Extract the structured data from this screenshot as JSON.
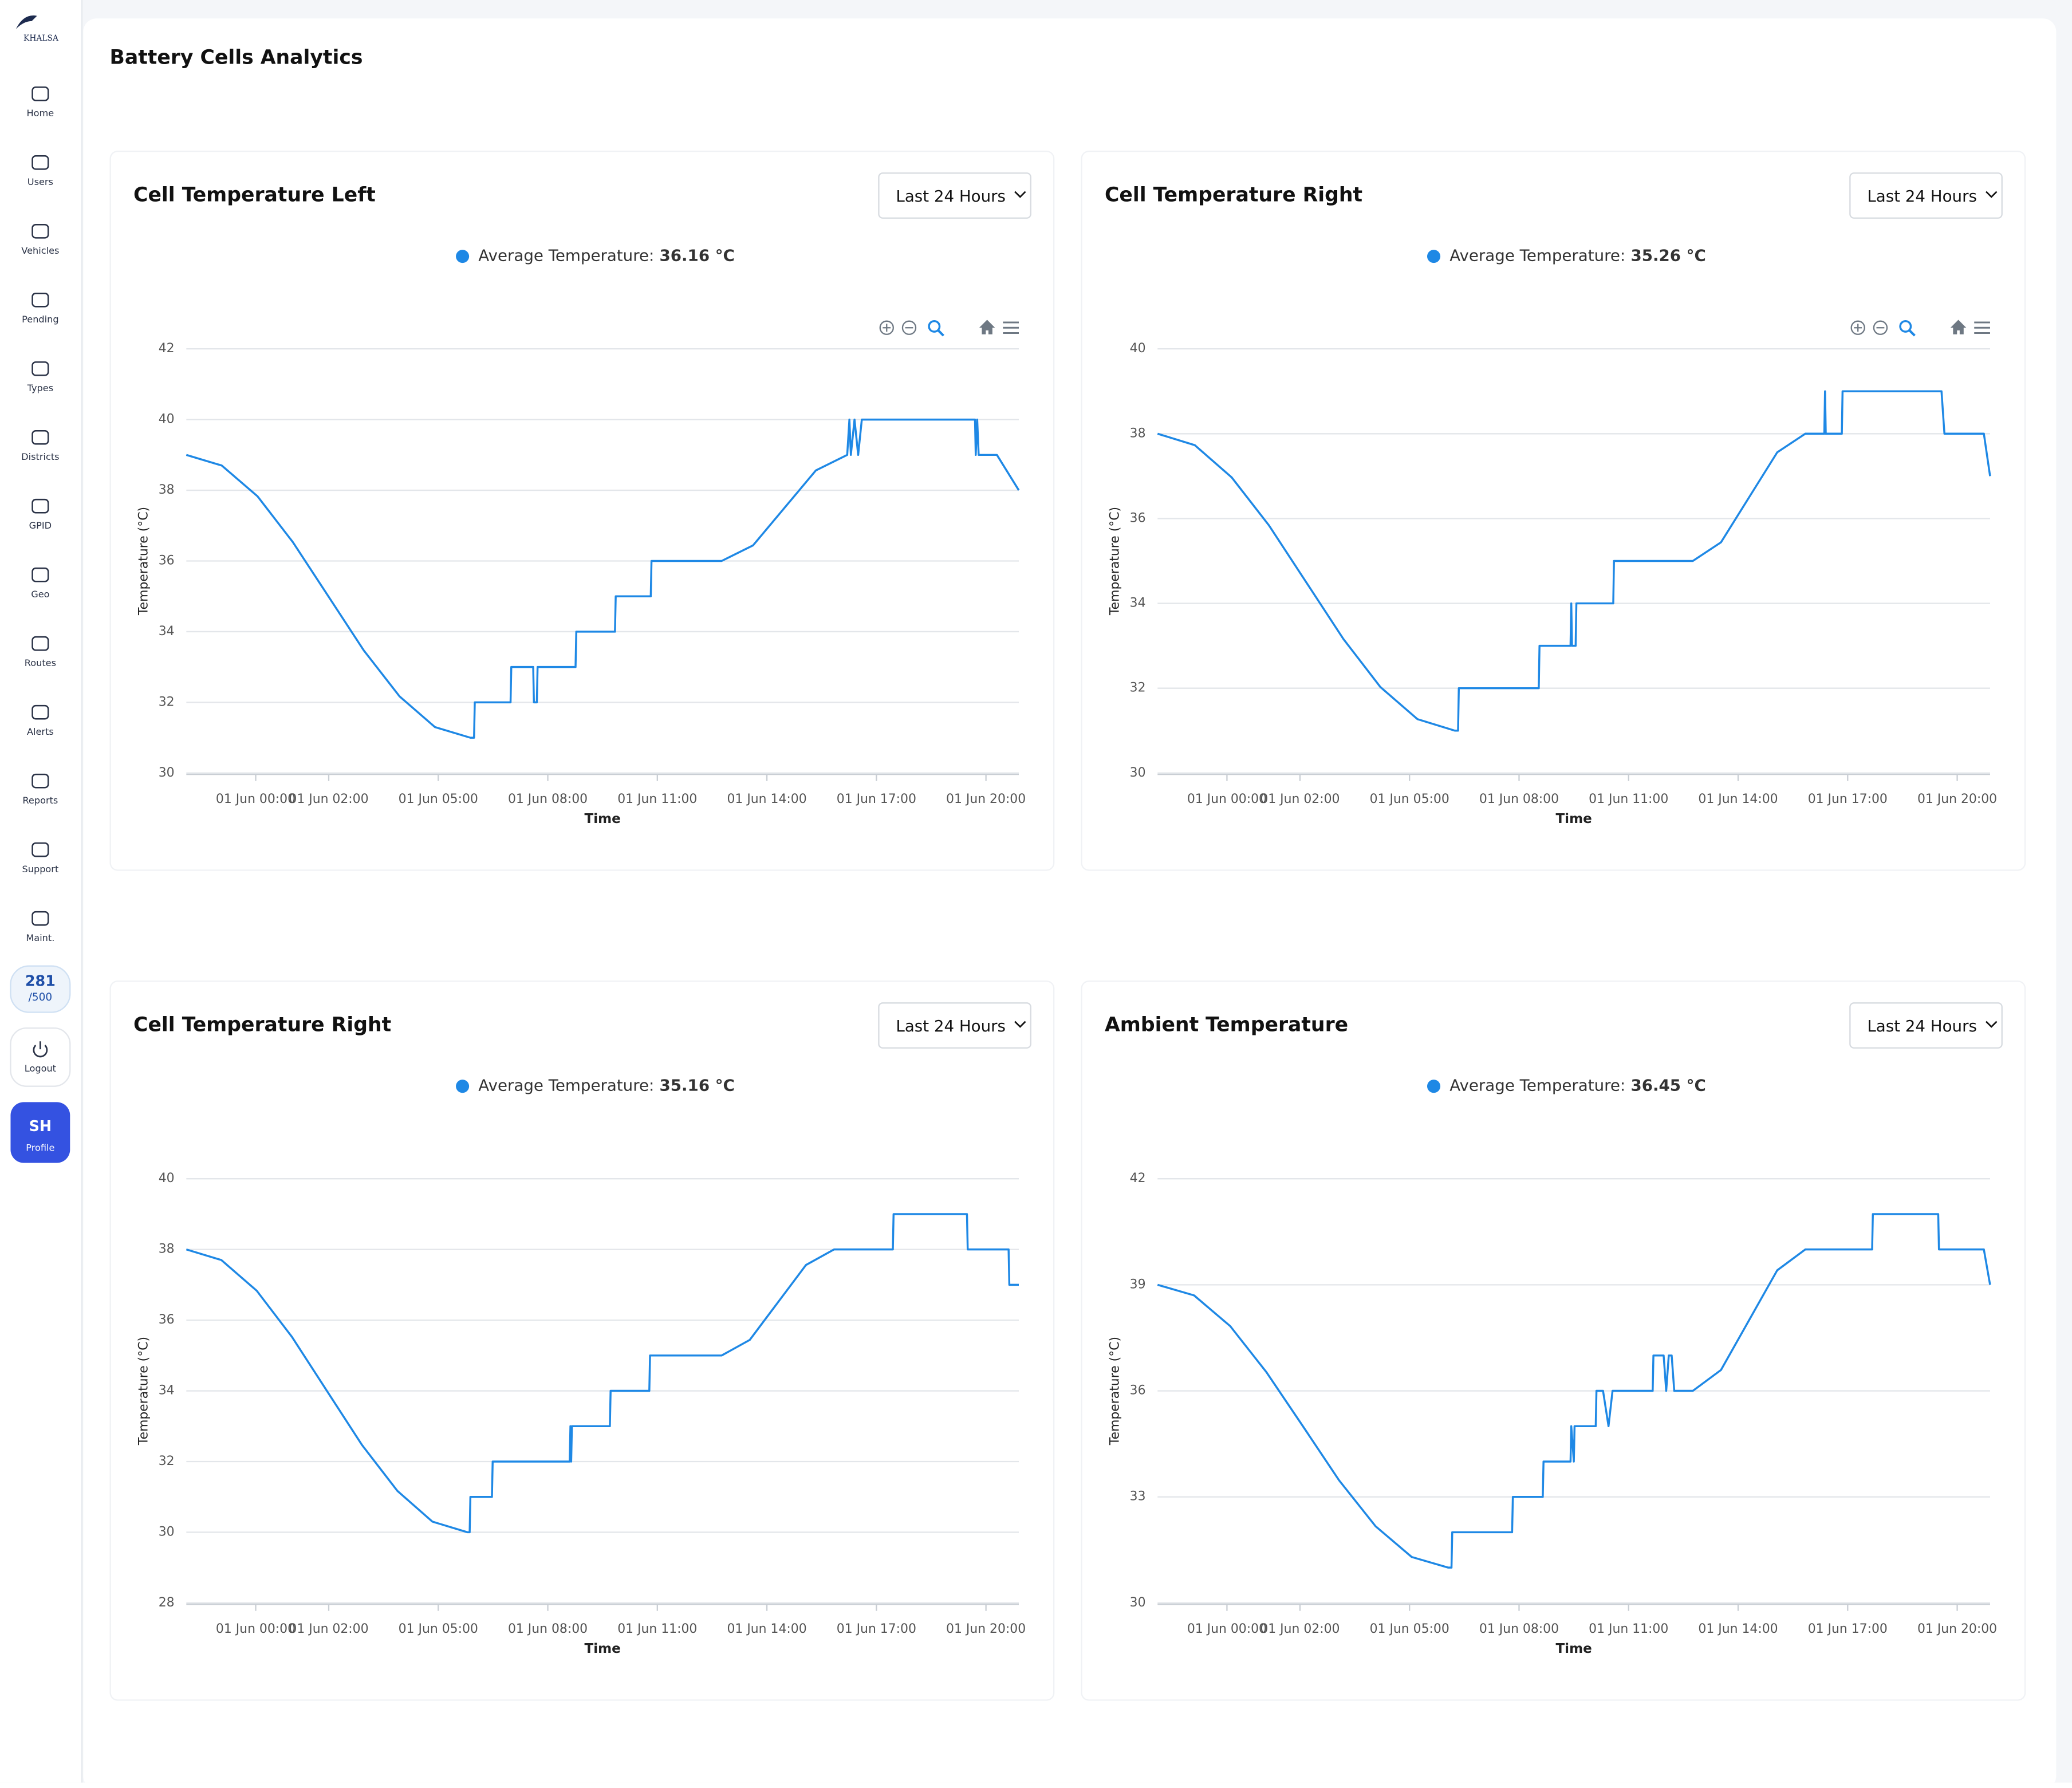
{
  "sidebar": {
    "logo": "KHALSA",
    "nav": [
      "Home",
      "Users",
      "Vehicles",
      "Pending",
      "Types",
      "Districts",
      "GPID",
      "Geo",
      "Routes",
      "Alerts",
      "Reports",
      "Support",
      "Maint."
    ],
    "quota": {
      "used": "281",
      "total": "/500"
    },
    "logout": "Logout",
    "profile": {
      "initials": "SH",
      "label": "Profile"
    }
  },
  "header": {
    "title": "Battery Cells Analytics"
  },
  "chart_data": [
    {
      "type": "line",
      "title": "Cell Temperature Left",
      "range_select": "Last 24 Hours",
      "grid": true,
      "y_label": "Temperature (°C)",
      "x_label": "Time",
      "legend_value": "36.16 °C",
      "xlim": [
        -1.9,
        20.9
      ],
      "xticks": [
        {
          "value": 0,
          "label": "01 Jun 00:00"
        },
        {
          "value": 2,
          "label": "01 Jun 02:00"
        },
        {
          "value": 5,
          "label": "01 Jun 05:00"
        },
        {
          "value": 8,
          "label": "01 Jun 08:00"
        },
        {
          "value": 11,
          "label": "01 Jun 11:00"
        },
        {
          "value": 14,
          "label": "01 Jun 14:00"
        },
        {
          "value": 17,
          "label": "01 Jun 17:00"
        },
        {
          "value": 20,
          "label": "01 Jun 20:00"
        }
      ],
      "ylim": [
        30,
        42
      ],
      "yticks": [
        30,
        32,
        34,
        36,
        38,
        40,
        42
      ],
      "x": [
        -1.9,
        -0.93,
        0.05,
        1.02,
        1.99,
        2.96,
        3.94,
        4.91,
        5.88,
        5.98,
        6.0,
        6.98,
        7.0,
        7.6,
        7.62,
        7.7,
        7.72,
        8.76,
        8.78,
        9.84,
        9.86,
        10.82,
        10.84,
        12.76,
        13.62,
        14.48,
        15.34,
        16.2,
        16.26,
        16.3,
        16.4,
        16.5,
        16.6,
        19.7,
        19.72,
        19.76,
        19.8,
        20.3,
        20.9
      ],
      "series": [
        {
          "name": "Average Temperature:",
          "color": "#1e88e5",
          "values": [
            39,
            38.7,
            37.83,
            36.53,
            35,
            33.47,
            32.17,
            31.3,
            31,
            31,
            32,
            32,
            33,
            33,
            32,
            32,
            33,
            33,
            34,
            34,
            35,
            35,
            36,
            36,
            36.44,
            37.5,
            38.56,
            39,
            40,
            39,
            40,
            39,
            40,
            40,
            39,
            40,
            39,
            39,
            38
          ]
        }
      ]
    },
    {
      "type": "line",
      "title": "Cell Temperature Right",
      "range_select": "Last 24 Hours",
      "grid": true,
      "y_label": "Temperature (°C)",
      "x_label": "Time",
      "legend_value": "35.26 °C",
      "xlim": [
        -1.9,
        20.9
      ],
      "xticks": [
        {
          "value": 0,
          "label": "01 Jun 00:00"
        },
        {
          "value": 2,
          "label": "01 Jun 02:00"
        },
        {
          "value": 5,
          "label": "01 Jun 05:00"
        },
        {
          "value": 8,
          "label": "01 Jun 08:00"
        },
        {
          "value": 11,
          "label": "01 Jun 11:00"
        },
        {
          "value": 14,
          "label": "01 Jun 14:00"
        },
        {
          "value": 17,
          "label": "01 Jun 17:00"
        },
        {
          "value": 20,
          "label": "01 Jun 20:00"
        }
      ],
      "ylim": [
        30,
        40
      ],
      "yticks": [
        30,
        32,
        34,
        36,
        38,
        40
      ],
      "x": [
        -1.9,
        -0.88,
        0.13,
        1.15,
        2.17,
        3.19,
        4.2,
        5.22,
        6.24,
        6.33,
        6.35,
        8.54,
        8.56,
        9.41,
        9.43,
        9.45,
        9.55,
        9.57,
        10.58,
        10.6,
        12.76,
        13.53,
        14.3,
        15.07,
        15.84,
        16.36,
        16.38,
        16.4,
        16.84,
        16.86,
        19.57,
        19.65,
        20.73,
        20.9
      ],
      "series": [
        {
          "name": "Average Temperature:",
          "color": "#1e88e5",
          "values": [
            38,
            37.73,
            36.97,
            35.84,
            34.5,
            33.16,
            32.03,
            31.27,
            31,
            31,
            32,
            32,
            33,
            33,
            34,
            33,
            33,
            34,
            34,
            35,
            35,
            35.44,
            36.5,
            37.56,
            38,
            38,
            39,
            38,
            38,
            39,
            39,
            38,
            38,
            37
          ]
        }
      ]
    },
    {
      "type": "line",
      "title": "Cell Temperature Right",
      "range_select": "Last 24 Hours",
      "grid": true,
      "y_label": "Temperature (°C)",
      "x_label": "Time",
      "legend_value": "35.16 °C",
      "xlim": [
        -1.9,
        20.9
      ],
      "xticks": [
        {
          "value": 0,
          "label": "01 Jun 00:00"
        },
        {
          "value": 2,
          "label": "01 Jun 02:00"
        },
        {
          "value": 5,
          "label": "01 Jun 05:00"
        },
        {
          "value": 8,
          "label": "01 Jun 08:00"
        },
        {
          "value": 11,
          "label": "01 Jun 11:00"
        },
        {
          "value": 14,
          "label": "01 Jun 14:00"
        },
        {
          "value": 17,
          "label": "01 Jun 17:00"
        },
        {
          "value": 20,
          "label": "01 Jun 20:00"
        }
      ],
      "ylim": [
        28,
        40
      ],
      "yticks": [
        28,
        30,
        32,
        34,
        36,
        38,
        40
      ],
      "x": [
        -1.9,
        -0.94,
        0.03,
        0.99,
        1.95,
        2.91,
        3.88,
        4.84,
        5.8,
        5.86,
        5.88,
        6.47,
        6.49,
        8.6,
        8.62,
        8.64,
        8.66,
        9.7,
        9.72,
        10.78,
        10.8,
        12.76,
        13.53,
        14.3,
        15.07,
        15.84,
        17.45,
        17.47,
        19.48,
        19.5,
        20.62,
        20.64,
        20.9
      ],
      "series": [
        {
          "name": "Average Temperature:",
          "color": "#1e88e5",
          "values": [
            38,
            37.7,
            36.83,
            35.53,
            34,
            32.47,
            31.17,
            30.3,
            30,
            30,
            31,
            31,
            32,
            32,
            33,
            32,
            33,
            33,
            34,
            34,
            35,
            35,
            35.44,
            36.5,
            37.56,
            38,
            38,
            39,
            39,
            38,
            38,
            37,
            37
          ]
        }
      ]
    },
    {
      "type": "line",
      "title": "Ambient Temperature",
      "range_select": "Last 24 Hours",
      "grid": true,
      "y_label": "Temperature (°C)",
      "x_label": "Time",
      "legend_value": "36.45 °C",
      "xlim": [
        -1.9,
        20.9
      ],
      "xticks": [
        {
          "value": 0,
          "label": "01 Jun 00:00"
        },
        {
          "value": 2,
          "label": "01 Jun 02:00"
        },
        {
          "value": 5,
          "label": "01 Jun 05:00"
        },
        {
          "value": 8,
          "label": "01 Jun 08:00"
        },
        {
          "value": 11,
          "label": "01 Jun 11:00"
        },
        {
          "value": 14,
          "label": "01 Jun 14:00"
        },
        {
          "value": 17,
          "label": "01 Jun 17:00"
        },
        {
          "value": 20,
          "label": "01 Jun 20:00"
        }
      ],
      "ylim": [
        30,
        42
      ],
      "yticks": [
        30,
        33,
        36,
        39,
        42
      ],
      "x": [
        -1.9,
        -0.9,
        0.09,
        1.08,
        2.08,
        3.07,
        4.07,
        5.06,
        6.06,
        6.15,
        6.17,
        7.81,
        7.83,
        8.65,
        8.67,
        9.41,
        9.43,
        9.5,
        9.52,
        10.1,
        10.12,
        10.3,
        10.45,
        10.56,
        11.66,
        11.68,
        11.96,
        12.03,
        12.1,
        12.18,
        12.25,
        12.76,
        13.53,
        14.3,
        15.07,
        15.84,
        17.67,
        17.69,
        19.48,
        19.5,
        20.73,
        20.9
      ],
      "series": [
        {
          "name": "Average Temperature:",
          "color": "#1e88e5",
          "values": [
            39,
            38.7,
            37.83,
            36.53,
            35,
            33.47,
            32.17,
            31.3,
            31,
            31,
            32,
            32,
            33,
            33,
            34,
            34,
            35,
            34,
            35,
            35,
            36,
            36,
            35,
            36,
            36,
            37,
            37,
            36,
            37,
            37,
            36,
            36,
            36.59,
            38,
            39.41,
            40,
            40,
            41,
            41,
            40,
            40,
            39
          ]
        }
      ]
    }
  ]
}
